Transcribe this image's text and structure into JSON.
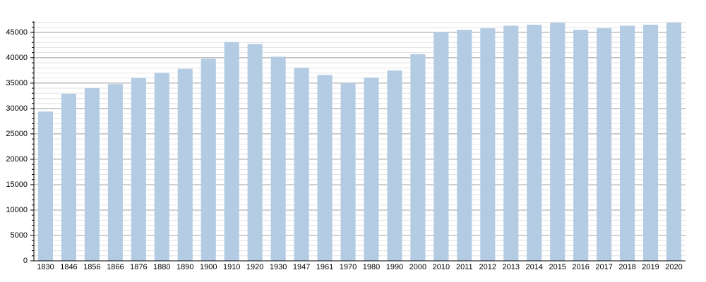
{
  "chart_data": {
    "type": "bar",
    "categories": [
      "1830",
      "1846",
      "1856",
      "1866",
      "1876",
      "1880",
      "1890",
      "1900",
      "1910",
      "1920",
      "1930",
      "1947",
      "1961",
      "1970",
      "1980",
      "1990",
      "2000",
      "2010",
      "2011",
      "2012",
      "2013",
      "2014",
      "2015",
      "2016",
      "2017",
      "2018",
      "2019",
      "2020"
    ],
    "values": [
      29400,
      32900,
      34000,
      34800,
      36000,
      37000,
      37800,
      39800,
      43100,
      42700,
      40200,
      38000,
      36600,
      35000,
      36100,
      37500,
      40700,
      45100,
      45500,
      45800,
      46300,
      46500,
      46900,
      45500,
      45800,
      46300,
      46500,
      46900
    ],
    "color": "#b3cce4",
    "ylim": [
      0,
      47200
    ],
    "yticks": [
      0,
      5000,
      10000,
      15000,
      20000,
      25000,
      30000,
      35000,
      40000,
      45000
    ],
    "grid": true,
    "minor_grid": true
  }
}
